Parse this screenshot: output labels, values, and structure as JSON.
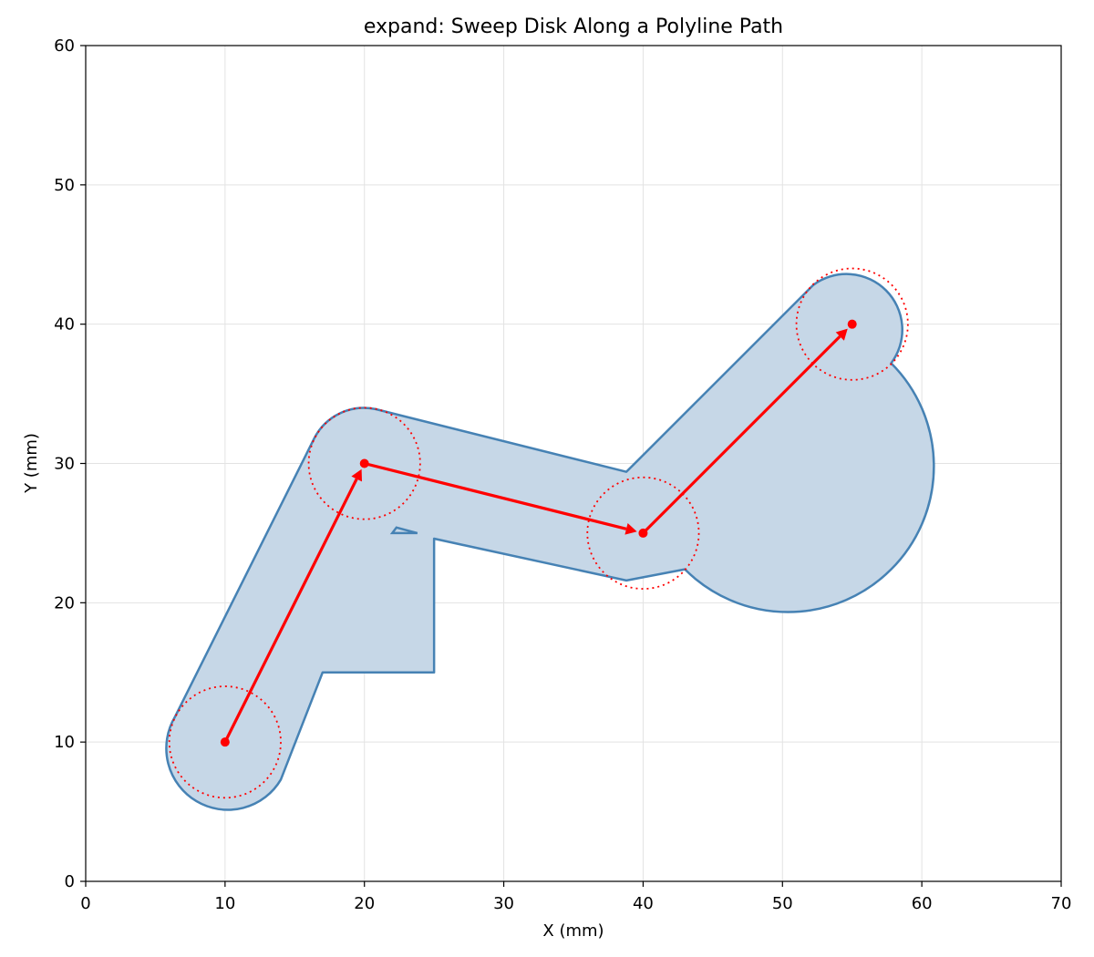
{
  "chart_data": {
    "type": "line",
    "title": "expand: Sweep Disk Along a Polyline Path",
    "xlabel": "X (mm)",
    "ylabel": "Y (mm)",
    "xlim": [
      0,
      70
    ],
    "ylim": [
      0,
      60
    ],
    "xticks": [
      0,
      10,
      20,
      30,
      40,
      50,
      60,
      70
    ],
    "yticks": [
      0,
      10,
      20,
      30,
      40,
      50,
      60
    ],
    "grid": true,
    "disk_radius": 4,
    "path": [
      [
        10,
        10
      ],
      [
        20,
        30
      ],
      [
        40,
        25
      ],
      [
        55,
        40
      ]
    ],
    "swept_outline": [
      [
        6.4,
        11.8
      ],
      [
        14.0,
        7.3
      ],
      [
        17.0,
        15.0
      ],
      [
        25.0,
        15.0
      ],
      [
        25.0,
        24.6
      ],
      [
        38.8,
        21.6
      ],
      [
        43.0,
        22.4
      ],
      [
        57.8,
        37.2
      ],
      [
        52.2,
        42.8
      ],
      [
        38.8,
        29.4
      ],
      [
        20.8,
        33.9
      ],
      [
        16.4,
        31.8
      ],
      [
        6.4,
        11.8
      ]
    ],
    "notch": [
      [
        22.0,
        25.0
      ],
      [
        23.8,
        25.0
      ],
      [
        22.3,
        25.4
      ]
    ],
    "colors": {
      "fill": "#c6d7e7",
      "outline": "#4682b4",
      "path": "#ff0000",
      "disk": "#ff0000",
      "grid": "#e3e3e3"
    }
  }
}
